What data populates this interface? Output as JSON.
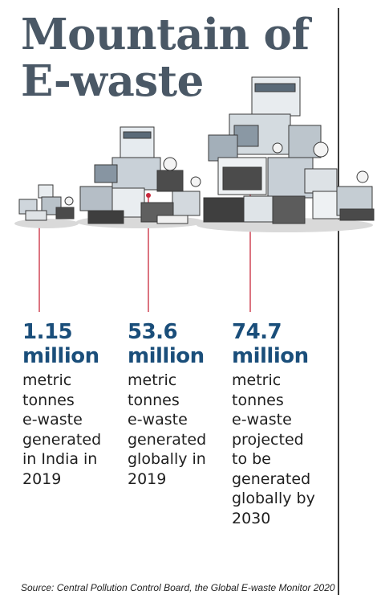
{
  "title": {
    "line1": "Mountain of",
    "line2": "E-waste"
  },
  "chart_data": {
    "type": "pictogram",
    "title": "Mountain of E-waste",
    "series": [
      {
        "value": "1.15",
        "unit": "million",
        "description": "metric tonnes e-waste generated in India in 2019",
        "value_numeric": 1.15,
        "year": 2019
      },
      {
        "value": "53.6",
        "unit": "million",
        "description": "metric tonnes e-waste generated globally in 2019",
        "value_numeric": 53.6,
        "year": 2019
      },
      {
        "value": "74.7",
        "unit": "million",
        "description": "metric tonnes e-waste projected to be generated globally by 2030",
        "value_numeric": 74.7,
        "year": 2030
      }
    ],
    "colors": {
      "value": "#1a4e7a",
      "leader": "#c8283c",
      "title": "#4a5866"
    }
  },
  "stats": [
    {
      "value": "1.15",
      "unit": "million",
      "lines": [
        "metric",
        "tonnes",
        "e-waste",
        "generated",
        "in India in",
        "2019"
      ]
    },
    {
      "value": "53.6",
      "unit": "million",
      "lines": [
        "metric",
        "tonnes",
        "e-waste",
        "generated",
        "globally in",
        "2019"
      ]
    },
    {
      "value": "74.7",
      "unit": "million",
      "lines": [
        "metric",
        "tonnes",
        "e-waste",
        "projected",
        "to be",
        "generated",
        "globally by",
        "2030"
      ]
    }
  ],
  "source": "Source: Central Pollution Control Board, the Global E-waste Monitor 2020"
}
